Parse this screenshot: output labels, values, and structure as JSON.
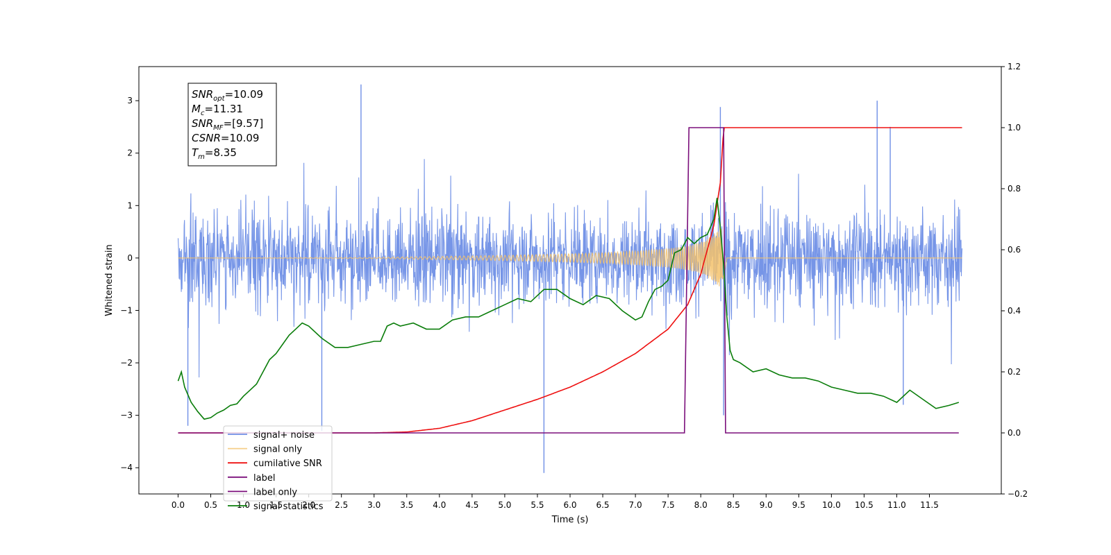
{
  "chart_data": {
    "type": "line",
    "xlabel": "Time (s)",
    "ylabel_left": "Whitened strain",
    "ylabel_right": "",
    "xlim": [
      -0.6,
      12.6
    ],
    "ylim_left": [
      -4.5,
      3.65
    ],
    "ylim_right": [
      -0.2,
      1.2
    ],
    "x_ticks": [
      0.0,
      0.5,
      1.0,
      1.5,
      2.0,
      2.5,
      3.0,
      3.5,
      4.0,
      4.5,
      5.0,
      5.5,
      6.0,
      6.5,
      7.0,
      7.5,
      8.0,
      8.5,
      9.0,
      9.5,
      10.0,
      10.5,
      11.0,
      11.5
    ],
    "x_tick_labels": [
      "0.0",
      "0.5",
      "1.0",
      "1.5",
      "2.0",
      "2.5",
      "3.0",
      "3.5",
      "4.0",
      "4.5",
      "5.0",
      "5.5",
      "6.0",
      "6.5",
      "7.0",
      "7.5",
      "8.0",
      "8.5",
      "9.0",
      "9.5",
      "10.0",
      "10.5",
      "11.0",
      "11.5"
    ],
    "y_left_ticks": [
      3,
      2,
      1,
      0,
      -1,
      -2,
      -3,
      -4
    ],
    "y_left_tick_labels": [
      "3",
      "2",
      "1",
      "0",
      "−1",
      "−2",
      "−3",
      "−4"
    ],
    "y_right_ticks": [
      1.2,
      1.0,
      0.8,
      0.6,
      0.4,
      0.2,
      0.0,
      -0.2
    ],
    "y_right_tick_labels": [
      "1.2",
      "1.0",
      "0.8",
      "0.6",
      "0.4",
      "0.2",
      "0.0",
      "−0.2"
    ],
    "grid": false,
    "legend_placement": "lower-left",
    "annotation": {
      "lines": [
        {
          "symbol": "SNR",
          "sub": "opt",
          "value": "=10.09"
        },
        {
          "symbol": "M",
          "sub": "c",
          "value": "=11.31"
        },
        {
          "symbol": "SNR",
          "sub": "MF",
          "value": "=[9.57]"
        },
        {
          "symbol": "CSNR",
          "sub": "",
          "value": "=10.09"
        },
        {
          "symbol": "T",
          "sub": "m",
          "value": "=8.35"
        }
      ]
    },
    "series": [
      {
        "name": "signal+ noise",
        "axis": "left",
        "color": "#6f8fe6",
        "style": "noise band",
        "x_range": [
          0.0,
          12.0
        ],
        "band_limits": [
          -1.3,
          1.3
        ],
        "peak_max": 3.31,
        "peak_min": -4.1,
        "peaks": [
          [
            0.15,
            -3.2
          ],
          [
            2.2,
            -3.3
          ],
          [
            2.8,
            3.31
          ],
          [
            5.6,
            -4.1
          ],
          [
            8.3,
            2.88
          ],
          [
            8.35,
            -3.0
          ],
          [
            10.7,
            3.0
          ],
          [
            10.9,
            2.5
          ],
          [
            11.1,
            -2.8
          ]
        ]
      },
      {
        "name": "signal only",
        "axis": "left",
        "color": "#f5c26b",
        "style": "chirp",
        "x_range": [
          0.0,
          12.0
        ],
        "merger_time": 8.35,
        "envelope": {
          "x": [
            0.0,
            3.0,
            4.0,
            5.0,
            6.0,
            6.5,
            7.0,
            7.5,
            7.8,
            8.0,
            8.2,
            8.3,
            8.35,
            8.4,
            12.0
          ],
          "amplitude": [
            0.0,
            0.01,
            0.03,
            0.05,
            0.08,
            0.1,
            0.13,
            0.18,
            0.23,
            0.3,
            0.45,
            0.62,
            0.4,
            0.0,
            0.0
          ]
        }
      },
      {
        "name": "cumilative SNR",
        "axis": "right",
        "color": "#ee1010",
        "x": [
          0.0,
          3.0,
          3.5,
          4.0,
          4.5,
          5.0,
          5.5,
          6.0,
          6.5,
          7.0,
          7.5,
          7.8,
          8.0,
          8.2,
          8.3,
          8.35,
          8.36,
          12.0
        ],
        "values": [
          0.0,
          0.0,
          0.003,
          0.015,
          0.04,
          0.075,
          0.11,
          0.15,
          0.2,
          0.26,
          0.34,
          0.42,
          0.52,
          0.68,
          0.82,
          1.0,
          1.0,
          1.0
        ]
      },
      {
        "name": "label",
        "axis": "right",
        "color": "#7b0f7b",
        "x": [
          0.0,
          7.75,
          7.82,
          8.35,
          8.38,
          11.95
        ],
        "values": [
          0.0,
          0.0,
          1.0,
          1.0,
          0.0,
          0.0
        ]
      },
      {
        "name": "label only",
        "axis": "right",
        "color": "#7b0f7b",
        "style": "hidden under label"
      },
      {
        "name": "signal statistics",
        "axis": "right",
        "color": "#0a7d0a",
        "x": [
          0.0,
          0.05,
          0.1,
          0.2,
          0.3,
          0.4,
          0.5,
          0.6,
          0.7,
          0.8,
          0.9,
          1.0,
          1.1,
          1.2,
          1.3,
          1.4,
          1.5,
          1.6,
          1.7,
          1.8,
          1.9,
          2.0,
          2.2,
          2.4,
          2.6,
          2.8,
          3.0,
          3.1,
          3.2,
          3.3,
          3.4,
          3.6,
          3.8,
          4.0,
          4.2,
          4.4,
          4.6,
          4.8,
          5.0,
          5.2,
          5.4,
          5.6,
          5.8,
          6.0,
          6.2,
          6.4,
          6.6,
          6.8,
          7.0,
          7.1,
          7.2,
          7.3,
          7.4,
          7.5,
          7.6,
          7.7,
          7.8,
          7.9,
          8.0,
          8.1,
          8.2,
          8.25,
          8.3,
          8.35,
          8.4,
          8.45,
          8.5,
          8.6,
          8.8,
          9.0,
          9.2,
          9.4,
          9.6,
          9.8,
          10.0,
          10.2,
          10.4,
          10.6,
          10.8,
          11.0,
          11.2,
          11.4,
          11.6,
          11.8,
          11.95
        ],
        "values": [
          0.17,
          0.2,
          0.15,
          0.1,
          0.07,
          0.045,
          0.05,
          0.065,
          0.075,
          0.09,
          0.095,
          0.12,
          0.14,
          0.16,
          0.2,
          0.24,
          0.26,
          0.29,
          0.32,
          0.34,
          0.36,
          0.35,
          0.31,
          0.28,
          0.28,
          0.29,
          0.3,
          0.3,
          0.35,
          0.36,
          0.35,
          0.36,
          0.34,
          0.34,
          0.37,
          0.38,
          0.38,
          0.4,
          0.42,
          0.44,
          0.43,
          0.47,
          0.47,
          0.44,
          0.42,
          0.45,
          0.44,
          0.4,
          0.37,
          0.38,
          0.43,
          0.47,
          0.48,
          0.5,
          0.59,
          0.6,
          0.64,
          0.62,
          0.64,
          0.65,
          0.7,
          0.77,
          0.67,
          0.55,
          0.38,
          0.27,
          0.24,
          0.23,
          0.2,
          0.21,
          0.19,
          0.18,
          0.18,
          0.17,
          0.15,
          0.14,
          0.13,
          0.13,
          0.12,
          0.1,
          0.14,
          0.11,
          0.08,
          0.09,
          0.1
        ]
      }
    ]
  }
}
